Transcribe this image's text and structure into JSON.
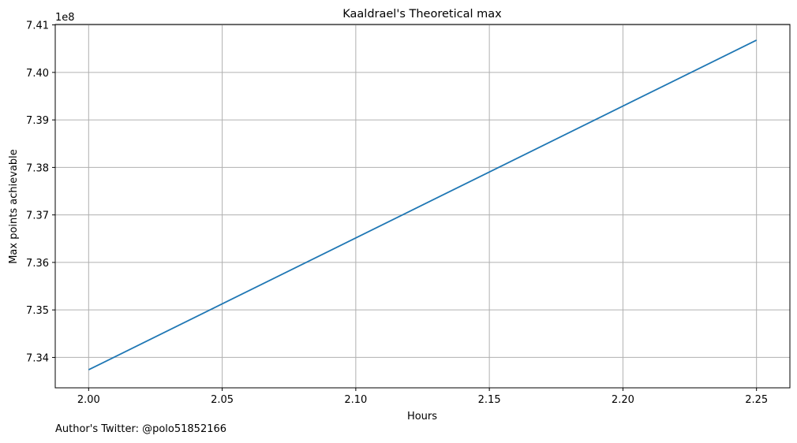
{
  "chart_data": {
    "type": "line",
    "title": "Kaaldrael's Theoretical max",
    "xlabel": "Hours",
    "ylabel": "Max points achievable",
    "y_offset_label": "1e8",
    "xlim": [
      1.9875,
      2.2625
    ],
    "ylim": [
      7.3336,
      7.4101
    ],
    "x_ticks": [
      2.0,
      2.05,
      2.1,
      2.15,
      2.2,
      2.25
    ],
    "x_tick_labels": [
      "2.00",
      "2.05",
      "2.10",
      "2.15",
      "2.20",
      "2.25"
    ],
    "y_ticks": [
      7.34,
      7.35,
      7.36,
      7.37,
      7.38,
      7.39,
      7.4,
      7.41
    ],
    "y_tick_labels": [
      "7.34",
      "7.35",
      "7.36",
      "7.37",
      "7.38",
      "7.39",
      "7.40",
      "7.41"
    ],
    "grid": true,
    "series": [
      {
        "color": "#1f77b4",
        "x": [
          2.0,
          2.25
        ],
        "y": [
          7.3374,
          7.4068
        ]
      }
    ]
  },
  "footer": {
    "text": "Author's Twitter: @polo51852166"
  }
}
